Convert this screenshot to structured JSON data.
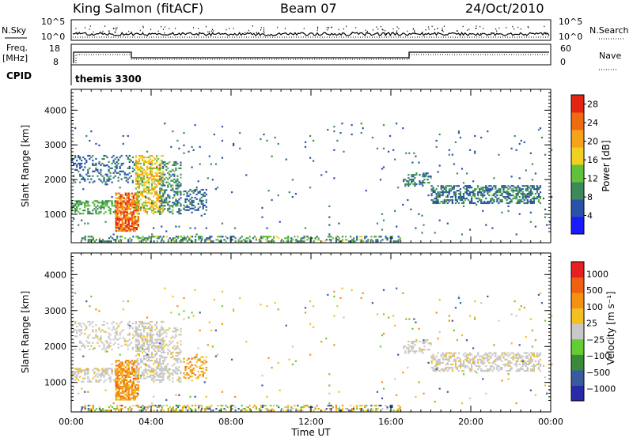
{
  "header": {
    "station": "King Salmon (fitACF)",
    "beam": "Beam 07",
    "date": "24/Oct/2010"
  },
  "status_panel": {
    "nsky_label": "N.Sky",
    "nsky_ticks": [
      "10^5",
      "10^0"
    ],
    "nsearch_label": "N.Search",
    "nsearch_ticks": [
      "10^5",
      "10^0"
    ],
    "freq_label": "Freq.",
    "freq_unit": "[MHz]",
    "freq_ticks": [
      "18",
      "8"
    ],
    "nave_label": "Nave",
    "nave_ticks": [
      "60",
      "0"
    ],
    "cpid_label": "CPID",
    "cpid_value": "themis 3300"
  },
  "colors": {
    "power": [
      "#1a1aff",
      "#2a52a8",
      "#3c8a5a",
      "#62c13a",
      "#f0d020",
      "#f7a21b",
      "#f06a10",
      "#e42512"
    ],
    "velocity": [
      "#2a2aa8",
      "#3a5aa0",
      "#3a8a3a",
      "#66cc33",
      "#c8c8c8",
      "#f2c020",
      "#f59010",
      "#f06010",
      "#e62020"
    ]
  },
  "chart_data": [
    {
      "type": "heatmap",
      "title": "Power",
      "xlabel": "Time UT",
      "ylabel": "Slant Range [km]",
      "x_ticks": [
        "00:00",
        "04:00",
        "08:00",
        "12:00",
        "16:00",
        "20:00",
        "00:00"
      ],
      "xlim_hours": [
        0,
        24
      ],
      "ylim": [
        180,
        4600
      ],
      "y_ticks": [
        1000,
        2000,
        3000,
        4000
      ],
      "colorbar": {
        "label": "Power [dB]",
        "ticks": [
          4,
          8,
          12,
          16,
          20,
          24,
          28
        ],
        "range": [
          0,
          30
        ]
      }
    },
    {
      "type": "heatmap",
      "title": "Velocity",
      "xlabel": "Time UT",
      "ylabel": "Slant Range [km]",
      "x_ticks": [
        "00:00",
        "04:00",
        "08:00",
        "12:00",
        "16:00",
        "20:00",
        "00:00"
      ],
      "xlim_hours": [
        0,
        24
      ],
      "ylim": [
        180,
        4600
      ],
      "y_ticks": [
        1000,
        2000,
        3000,
        4000
      ],
      "colorbar": {
        "label": "Velocity [m s⁻¹]",
        "ticks": [
          "1000",
          "500",
          "100",
          "25",
          "−25",
          "−100",
          "−500",
          "−1000"
        ]
      }
    }
  ]
}
